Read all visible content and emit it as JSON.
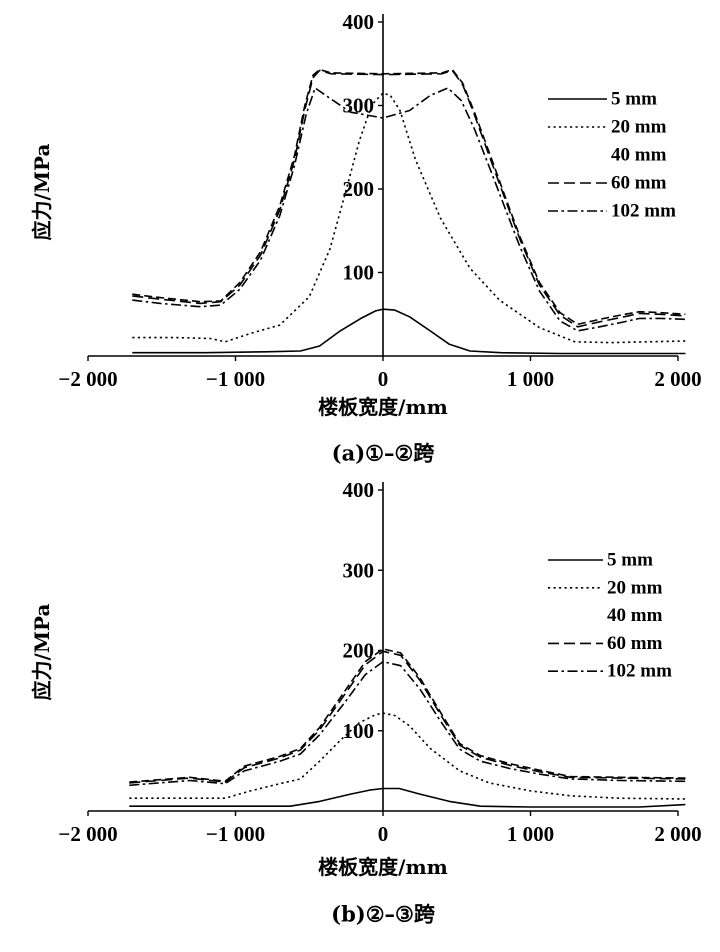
{
  "colors": {
    "line": "#000000",
    "background": "#ffffff"
  },
  "chart_data": [
    {
      "type": "line",
      "caption": "(a)①–②跨",
      "xlabel": "楼板宽度/mm",
      "ylabel": "应力/MPa",
      "xlim": [
        -2000,
        2000
      ],
      "ylim": [
        0,
        400
      ],
      "grid": false,
      "legend_position": "right",
      "x_ticks": [
        {
          "value": -2000,
          "label": "−2 000"
        },
        {
          "value": -1000,
          "label": "−1 000"
        },
        {
          "value": 0,
          "label": "0"
        },
        {
          "value": 1000,
          "label": "1 000"
        },
        {
          "value": 2000,
          "label": "2 000"
        }
      ],
      "y_ticks": [
        {
          "value": 100,
          "label": "100"
        },
        {
          "value": 200,
          "label": "200"
        },
        {
          "value": 300,
          "label": "300"
        },
        {
          "value": 400,
          "label": "400"
        }
      ],
      "series": [
        {
          "name": "5 mm",
          "x": [
            -1700,
            -1200,
            -800,
            -560,
            -430,
            -290,
            -150,
            -50,
            0,
            80,
            180,
            320,
            450,
            590,
            800,
            1200,
            1600,
            2050
          ],
          "y": [
            4,
            4,
            5,
            6,
            12,
            30,
            45,
            54,
            56,
            55,
            47,
            30,
            14,
            6,
            4,
            3,
            3,
            3
          ]
        },
        {
          "name": "20 mm",
          "x": [
            -1700,
            -1400,
            -1170,
            -1070,
            -900,
            -700,
            -500,
            -360,
            -260,
            -160,
            -75,
            0,
            50,
            115,
            220,
            390,
            590,
            790,
            1060,
            1300,
            1540,
            1800,
            2050
          ],
          "y": [
            22,
            22,
            21,
            17,
            27,
            37,
            71,
            128,
            192,
            258,
            301,
            315,
            312,
            294,
            235,
            165,
            105,
            67,
            34,
            17,
            16,
            17,
            18
          ]
        },
        {
          "name": "40 mm",
          "x": [
            -1700,
            -1510,
            -1240,
            -1100,
            -970,
            -830,
            -700,
            -600,
            -530,
            -475,
            -430,
            -350,
            0,
            400,
            470,
            540,
            620,
            730,
            830,
            930,
            1060,
            1200,
            1320,
            1470,
            1610,
            1740,
            1880,
            2050
          ],
          "y": [
            74,
            70,
            65,
            66,
            88,
            125,
            180,
            240,
            300,
            336,
            343,
            339,
            338,
            339,
            343,
            327,
            292,
            239,
            190,
            142,
            88,
            52,
            38,
            44,
            49,
            53,
            52,
            50
          ]
        },
        {
          "name": "60 mm",
          "x": [
            -1700,
            -1510,
            -1240,
            -1100,
            -970,
            -830,
            -700,
            -600,
            -530,
            -475,
            -430,
            -350,
            0,
            400,
            470,
            540,
            620,
            730,
            830,
            930,
            1060,
            1200,
            1320,
            1470,
            1610,
            1740,
            1880,
            2050
          ],
          "y": [
            72,
            68,
            63,
            65,
            85,
            121,
            175,
            235,
            295,
            333,
            342,
            338,
            337,
            338,
            342,
            325,
            289,
            235,
            187,
            139,
            85,
            49,
            35,
            41,
            46,
            51,
            50,
            48
          ]
        },
        {
          "name": "102 mm",
          "x": [
            -1700,
            -1510,
            -1240,
            -1100,
            -970,
            -830,
            -700,
            -600,
            -520,
            -460,
            -380,
            -220,
            0,
            180,
            320,
            440,
            530,
            620,
            730,
            830,
            930,
            1060,
            1200,
            1320,
            1470,
            1610,
            1740,
            1880,
            2050
          ],
          "y": [
            67,
            63,
            59,
            61,
            80,
            115,
            168,
            228,
            290,
            321,
            311,
            292,
            285,
            294,
            312,
            321,
            306,
            272,
            222,
            176,
            130,
            78,
            42,
            30,
            35,
            40,
            45,
            45,
            44
          ]
        }
      ]
    },
    {
      "type": "line",
      "caption": "(b)②–③跨",
      "xlabel": "楼板宽度/mm",
      "ylabel": "应力/MPa",
      "xlim": [
        -2000,
        2000
      ],
      "ylim": [
        0,
        400
      ],
      "grid": false,
      "legend_position": "right",
      "x_ticks": [
        {
          "value": -2000,
          "label": "−2 000"
        },
        {
          "value": -1000,
          "label": "−1 000"
        },
        {
          "value": 0,
          "label": "0"
        },
        {
          "value": 1000,
          "label": "1 000"
        },
        {
          "value": 2000,
          "label": "2 000"
        }
      ],
      "y_ticks": [
        {
          "value": 100,
          "label": "100"
        },
        {
          "value": 200,
          "label": "200"
        },
        {
          "value": 300,
          "label": "300"
        },
        {
          "value": 400,
          "label": "400"
        }
      ],
      "series": [
        {
          "name": "5 mm",
          "x": [
            -1720,
            -1200,
            -630,
            -430,
            -220,
            -90,
            0,
            110,
            250,
            450,
            660,
            1000,
            1500,
            1740,
            2050
          ],
          "y": [
            6,
            6,
            6,
            12,
            21,
            26,
            28,
            28,
            21,
            12,
            6,
            5,
            5,
            5,
            8
          ]
        },
        {
          "name": "20 mm",
          "x": [
            -1720,
            -1400,
            -1070,
            -900,
            -700,
            -560,
            -430,
            -290,
            -160,
            -50,
            0,
            80,
            180,
            320,
            520,
            720,
            1000,
            1270,
            1600,
            2050
          ],
          "y": [
            16,
            16,
            16,
            25,
            34,
            40,
            62,
            88,
            110,
            120,
            122,
            119,
            106,
            78,
            50,
            35,
            25,
            19,
            16,
            15
          ]
        },
        {
          "name": "40 mm",
          "x": [
            -1720,
            -1310,
            -1070,
            -940,
            -700,
            -560,
            -430,
            -260,
            -120,
            0,
            120,
            250,
            390,
            520,
            660,
            860,
            1060,
            1270,
            1610,
            2050
          ],
          "y": [
            36,
            42,
            37,
            56,
            68,
            78,
            104,
            149,
            186,
            202,
            197,
            166,
            123,
            84,
            69,
            59,
            51,
            43,
            42,
            41
          ]
        },
        {
          "name": "60 mm",
          "x": [
            -1720,
            -1310,
            -1070,
            -940,
            -700,
            -560,
            -430,
            -260,
            -120,
            0,
            120,
            250,
            390,
            520,
            660,
            860,
            1060,
            1270,
            1610,
            2050
          ],
          "y": [
            35,
            41,
            36,
            54,
            66,
            76,
            101,
            145,
            182,
            199,
            194,
            163,
            120,
            82,
            67,
            57,
            49,
            42,
            41,
            40
          ]
        },
        {
          "name": "102 mm",
          "x": [
            -1720,
            -1310,
            -1070,
            -940,
            -700,
            -560,
            -430,
            -260,
            -120,
            0,
            120,
            250,
            390,
            520,
            660,
            860,
            1060,
            1270,
            1610,
            2050
          ],
          "y": [
            32,
            38,
            34,
            50,
            62,
            71,
            95,
            135,
            170,
            186,
            181,
            152,
            112,
            77,
            62,
            53,
            46,
            40,
            38,
            37
          ]
        }
      ]
    }
  ]
}
